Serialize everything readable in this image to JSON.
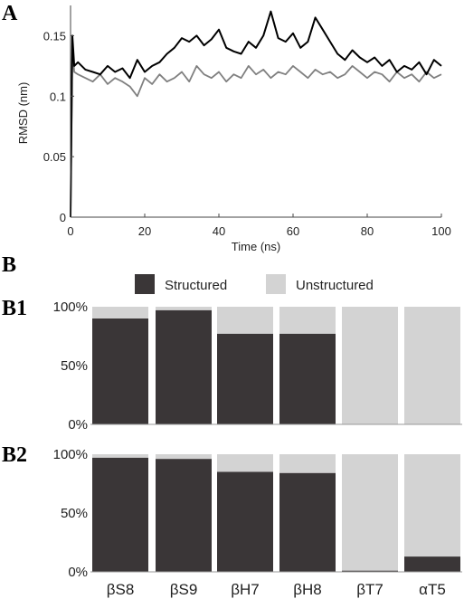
{
  "panels": {
    "a": "A",
    "b": "B",
    "b1": "B1",
    "b2": "B2"
  },
  "colors": {
    "structured": "#3a3637",
    "unstructured": "#d3d3d3",
    "line_dark": "#000000",
    "line_gray": "#808080"
  },
  "chart_data": [
    {
      "type": "line",
      "xlabel": "Time (ns)",
      "ylabel": "RMSD (nm)",
      "xlim": [
        0,
        100
      ],
      "ylim": [
        0,
        0.175
      ],
      "xticks": [
        "0",
        "20",
        "40",
        "60",
        "80",
        "100"
      ],
      "yticks": [
        "0",
        "0.05",
        "0.1",
        "0.15"
      ],
      "grid": false,
      "series": [
        {
          "color": "#000000",
          "x": [
            0,
            0.5,
            1,
            2,
            4,
            6,
            8,
            10,
            12,
            14,
            16,
            18,
            20,
            22,
            24,
            26,
            28,
            30,
            32,
            34,
            36,
            38,
            40,
            42,
            44,
            46,
            48,
            50,
            52,
            54,
            56,
            58,
            60,
            62,
            64,
            66,
            68,
            70,
            72,
            74,
            76,
            78,
            80,
            82,
            84,
            86,
            88,
            90,
            92,
            94,
            96,
            98,
            100
          ],
          "y": [
            0,
            0.15,
            0.125,
            0.128,
            0.122,
            0.12,
            0.118,
            0.125,
            0.12,
            0.123,
            0.115,
            0.13,
            0.12,
            0.125,
            0.128,
            0.135,
            0.14,
            0.148,
            0.145,
            0.15,
            0.142,
            0.147,
            0.155,
            0.14,
            0.137,
            0.135,
            0.145,
            0.14,
            0.15,
            0.17,
            0.148,
            0.145,
            0.152,
            0.14,
            0.145,
            0.165,
            0.155,
            0.145,
            0.135,
            0.13,
            0.138,
            0.132,
            0.128,
            0.132,
            0.125,
            0.13,
            0.12,
            0.125,
            0.122,
            0.128,
            0.118,
            0.13,
            0.125
          ]
        },
        {
          "color": "#808080",
          "x": [
            0,
            0.5,
            1,
            2,
            4,
            6,
            8,
            10,
            12,
            14,
            16,
            18,
            20,
            22,
            24,
            26,
            28,
            30,
            32,
            34,
            36,
            38,
            40,
            42,
            44,
            46,
            48,
            50,
            52,
            54,
            56,
            58,
            60,
            62,
            64,
            66,
            68,
            70,
            72,
            74,
            76,
            78,
            80,
            82,
            84,
            86,
            88,
            90,
            92,
            94,
            96,
            98,
            100
          ],
          "y": [
            0,
            0.14,
            0.12,
            0.118,
            0.115,
            0.112,
            0.118,
            0.11,
            0.115,
            0.112,
            0.108,
            0.1,
            0.115,
            0.11,
            0.118,
            0.112,
            0.115,
            0.12,
            0.112,
            0.125,
            0.118,
            0.115,
            0.12,
            0.112,
            0.118,
            0.115,
            0.125,
            0.118,
            0.122,
            0.115,
            0.12,
            0.118,
            0.125,
            0.12,
            0.115,
            0.122,
            0.118,
            0.12,
            0.115,
            0.118,
            0.125,
            0.12,
            0.115,
            0.12,
            0.118,
            0.112,
            0.12,
            0.115,
            0.118,
            0.112,
            0.12,
            0.115,
            0.118
          ]
        }
      ]
    },
    {
      "type": "bar",
      "stacked": true,
      "panel": "B1",
      "categories": [
        "βS8",
        "βS9",
        "βH7",
        "βH8",
        "βT7",
        "αT5"
      ],
      "yticks": [
        "0%",
        "50%",
        "100%"
      ],
      "ylim": [
        0,
        100
      ],
      "series": [
        {
          "name": "Structured",
          "values": [
            90,
            97,
            77,
            77,
            0,
            0
          ]
        },
        {
          "name": "Unstructured",
          "values": [
            10,
            3,
            23,
            23,
            100,
            100
          ]
        }
      ]
    },
    {
      "type": "bar",
      "stacked": true,
      "panel": "B2",
      "categories": [
        "βS8",
        "βS9",
        "βH7",
        "βH8",
        "βT7",
        "αT5"
      ],
      "yticks": [
        "0%",
        "50%",
        "100%"
      ],
      "ylim": [
        0,
        100
      ],
      "series": [
        {
          "name": "Structured",
          "values": [
            97,
            96,
            85,
            84,
            1,
            13
          ]
        },
        {
          "name": "Unstructured",
          "values": [
            3,
            4,
            15,
            16,
            99,
            87
          ]
        }
      ]
    }
  ],
  "legend": {
    "structured": "Structured",
    "unstructured": "Unstructured"
  }
}
